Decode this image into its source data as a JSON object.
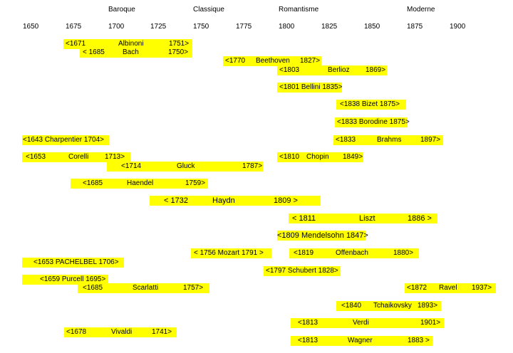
{
  "periods": {
    "baroque": "Baroque",
    "classique": "Classique",
    "romantisme": "Romantisme",
    "moderne": "Moderne"
  },
  "years": [
    "1650",
    "1675",
    "1700",
    "1725",
    "1750",
    "1775",
    "1800",
    "1825",
    "1850",
    "1875",
    "1900"
  ],
  "composers": {
    "albinoni": {
      "birth": "<1671",
      "name": "Albinoni",
      "death": "1751>"
    },
    "bach": {
      "birth": "< 1685",
      "name": "Bach",
      "death": "1750>"
    },
    "beethoven": {
      "birth": "<1770",
      "name": "Beethoven",
      "death": "1827>"
    },
    "berlioz": {
      "birth": "<1803",
      "name": "Berlioz",
      "death": "1869>"
    },
    "bellini": {
      "text": "<1801  Bellini 1835>"
    },
    "bizet": {
      "text": "<1838   Bizet  1875>"
    },
    "borodine": {
      "text": "<1833  Borodine 1875>"
    },
    "charpentier": {
      "text": "<1643    Charpentier  1704>"
    },
    "brahms": {
      "birth": "<1833",
      "name": "Brahms",
      "death": "1897>"
    },
    "corelli": {
      "birth": "<1653",
      "name": "Corelli",
      "death": "1713>"
    },
    "chopin": {
      "birth": "<1810",
      "name": "Chopin",
      "death": "1849>"
    },
    "gluck": {
      "birth": "<1714",
      "name": "Gluck",
      "death": "1787>"
    },
    "haendel": {
      "birth": "<1685",
      "name": "Haendel",
      "death": "1759>"
    },
    "haydn": {
      "birth": "< 1732",
      "name": "Haydn",
      "death": "1809 >"
    },
    "liszt": {
      "birth": "< 1811",
      "name": "Liszt",
      "death": "1886 >"
    },
    "mendelssohn": {
      "text": "<1809 Mendelsohn 1847>"
    },
    "mozart": {
      "text": "< 1756  Mozart  1791 >"
    },
    "offenbach": {
      "birth": "<1819",
      "name": "Offenbach",
      "death": "1880>"
    },
    "pachelbel": {
      "text": "<1653  PACHELBEL 1706>"
    },
    "schubert": {
      "text": "<1797 Schubert 1828>"
    },
    "purcell": {
      "text": "<1659 Purcell 1695>"
    },
    "scarlatti": {
      "birth": "<1685",
      "name": "Scarlatti",
      "death": "1757>"
    },
    "ravel": {
      "birth": "<1872",
      "name": "Ravel",
      "death": "1937>"
    },
    "tchaikovsky": {
      "birth": "<1840",
      "name": "Tchaikovsky",
      "death": "1893>"
    },
    "verdi": {
      "birth": "<1813",
      "name": "Verdi",
      "death": "1901>"
    },
    "vivaldi": {
      "birth": "<1678",
      "name": "Vivaldi",
      "death": "1741>"
    },
    "wagner": {
      "birth": "<1813",
      "name": "Wagner",
      "death": "1883  >"
    }
  },
  "colors": {
    "bar": "#ffff00"
  }
}
